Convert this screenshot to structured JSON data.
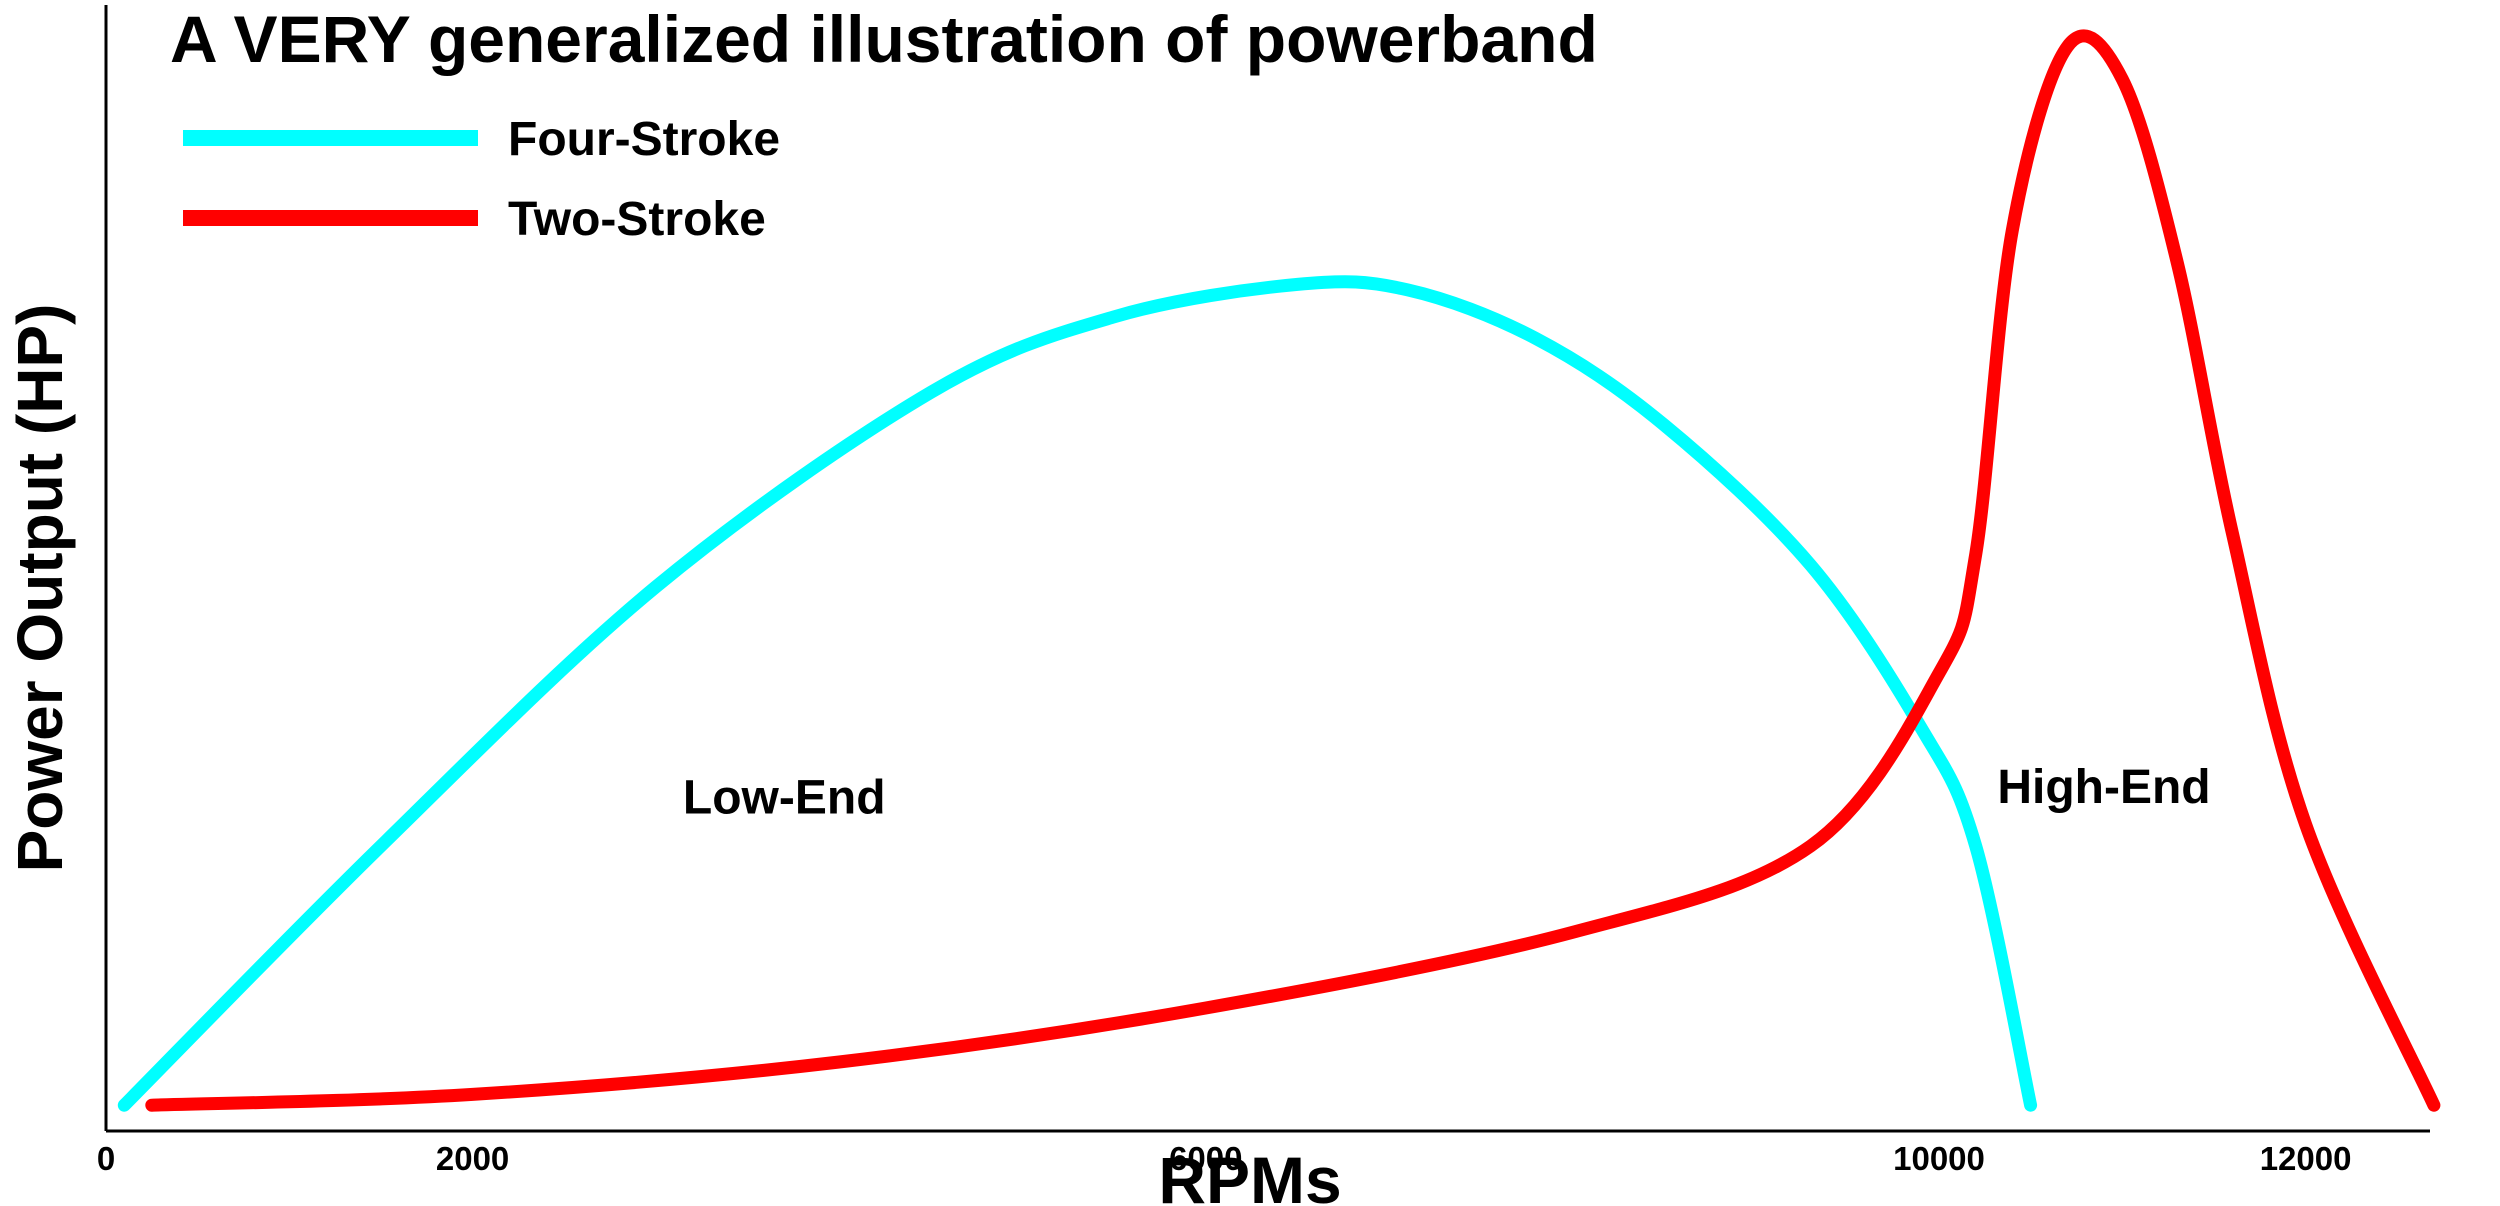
{
  "chart_data": {
    "type": "line",
    "title": "A VERY generalized illustration of powerband",
    "xlabel": "RPMs",
    "ylabel": "Power Output (HP)",
    "x_ticks": [
      {
        "value": 0,
        "label": "0"
      },
      {
        "value": 2000,
        "label": "2000"
      },
      {
        "value": 6000,
        "label": "6000"
      },
      {
        "value": 10000,
        "label": "10000"
      },
      {
        "value": 12000,
        "label": "12000"
      }
    ],
    "y_ticks": [],
    "legend_position": "top-left",
    "grid": false,
    "annotations": [
      {
        "text": "Low-End",
        "x": 3700,
        "y": 28
      },
      {
        "text": "High-End",
        "x": 10900,
        "y": 29
      }
    ],
    "series": [
      {
        "name": "Four-Stroke",
        "color": "#00FFFF",
        "x": [
          100,
          1500,
          3000,
          4500,
          5500,
          6500,
          7100,
          7800,
          8500,
          9300,
          9900,
          10200,
          10500
        ],
        "y": [
          1,
          25,
          49,
          67,
          74,
          77,
          76.5,
          72,
          64,
          51,
          36,
          25,
          1
        ]
      },
      {
        "name": "Two-Stroke",
        "color": "#FF0000",
        "x": [
          250,
          2000,
          4000,
          6000,
          8000,
          9300,
          10000,
          10200,
          10400,
          10700,
          11000,
          11300,
          11600,
          12000,
          12700
        ],
        "y": [
          1,
          2,
          5,
          10,
          17,
          25,
          41,
          52,
          82,
          99,
          96,
          79,
          54,
          27,
          1
        ]
      }
    ]
  }
}
